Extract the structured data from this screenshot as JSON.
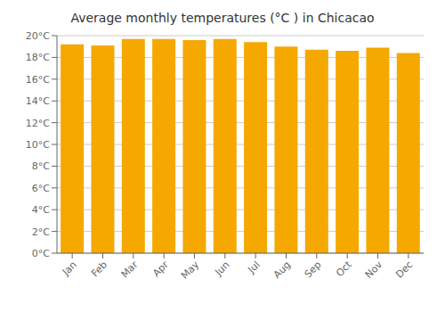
{
  "chart_data": {
    "type": "bar",
    "title": "Average monthly temperatures (°C ) in Chicacao",
    "categories": [
      "Jan",
      "Feb",
      "Mar",
      "Apr",
      "May",
      "Jun",
      "Jul",
      "Aug",
      "Sep",
      "Oct",
      "Nov",
      "Dec"
    ],
    "values": [
      19.2,
      19.1,
      19.7,
      19.7,
      19.6,
      19.7,
      19.4,
      19.0,
      18.7,
      18.6,
      18.9,
      18.4
    ],
    "color": "#F5A800",
    "ylim": [
      0,
      20
    ],
    "yticks": [
      {
        "value": 0,
        "label": "0°C"
      },
      {
        "value": 2,
        "label": "2°C"
      },
      {
        "value": 4,
        "label": "4°C"
      },
      {
        "value": 6,
        "label": "6°C"
      },
      {
        "value": 8,
        "label": "8°C"
      },
      {
        "value": 10,
        "label": "10°C"
      },
      {
        "value": 12,
        "label": "12°C"
      },
      {
        "value": 14,
        "label": "14°C"
      },
      {
        "value": 16,
        "label": "16°C"
      },
      {
        "value": 18,
        "label": "18°C"
      },
      {
        "value": 20,
        "label": "20°C"
      }
    ],
    "grid": true
  }
}
